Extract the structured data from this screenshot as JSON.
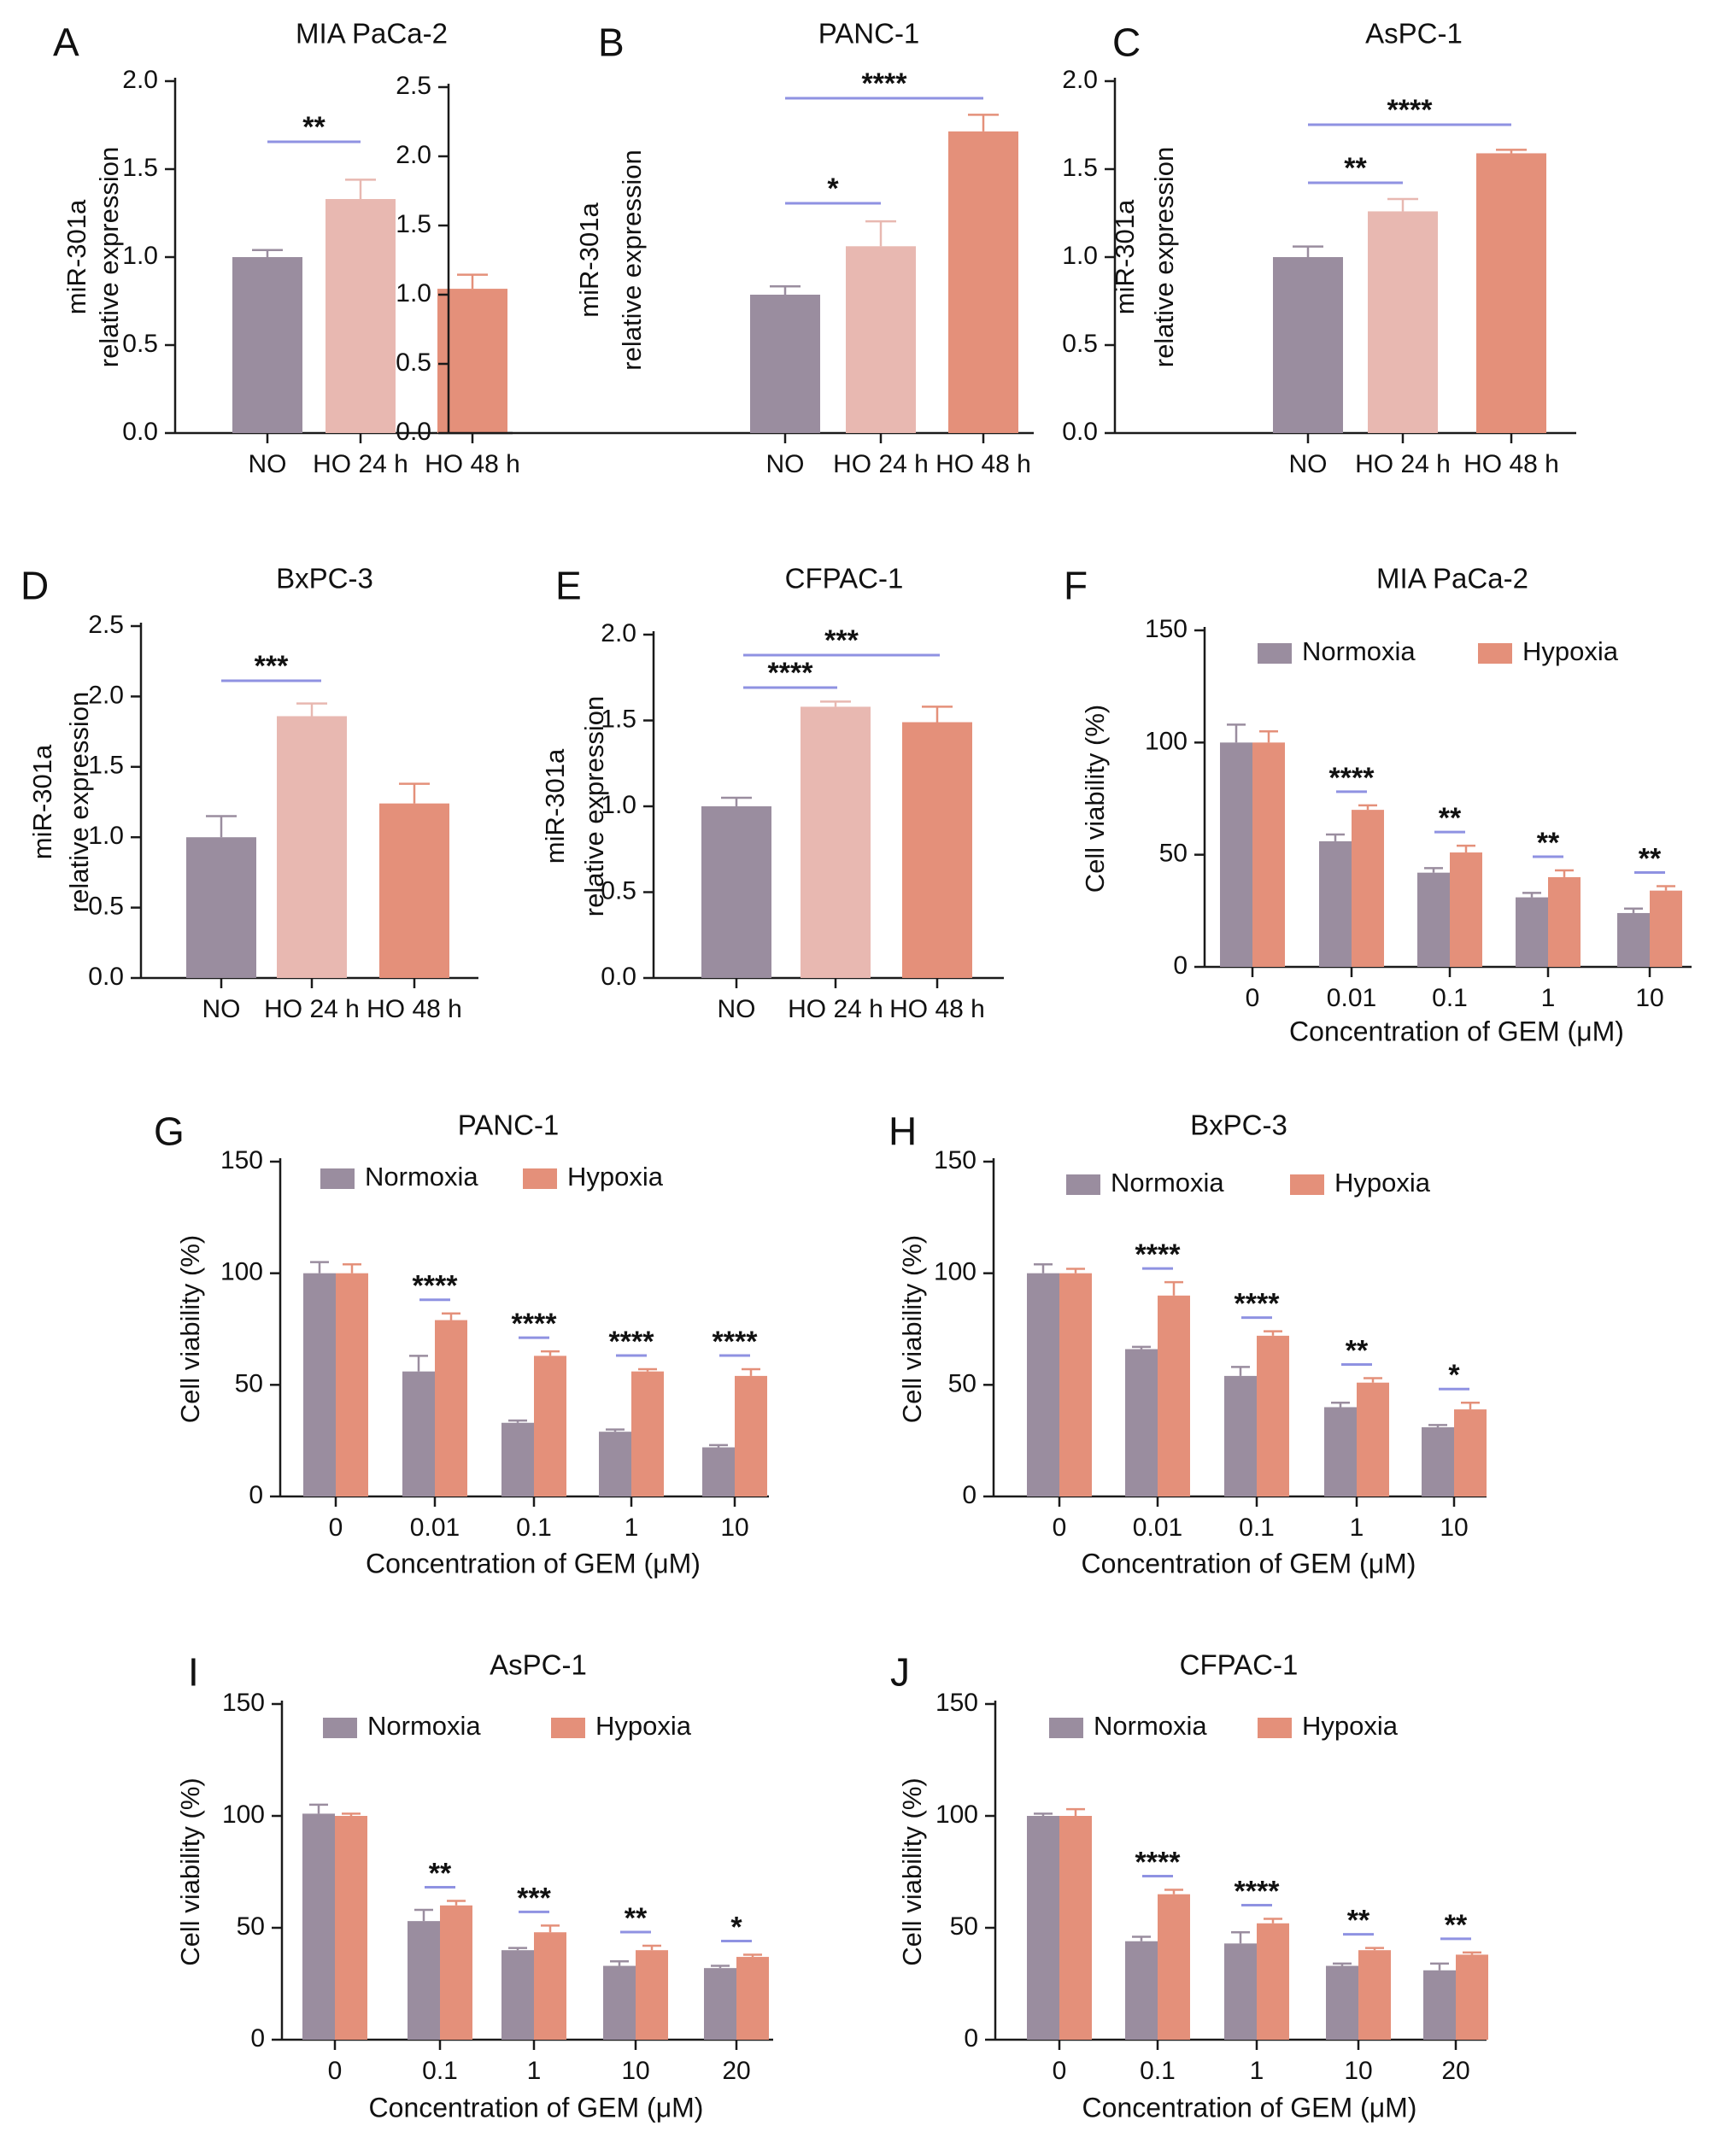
{
  "colors": {
    "normoxia": "#9a8d9f",
    "ho24": "#e8b8b1",
    "hypoxia": "#e4907a",
    "sig": "#8f92e2",
    "axis": "#1a1a1a"
  },
  "chart_data": [
    {
      "id": "A",
      "type": "bar",
      "title": "MIA PaCa-2",
      "ylabel": [
        "miR-301a",
        "relative expression"
      ],
      "xlabel": "",
      "categories": [
        "NO",
        "HO 24 h",
        "HO 48 h"
      ],
      "values": [
        1.0,
        1.33,
        0.82
      ],
      "errors": [
        0.04,
        0.11,
        0.08
      ],
      "ylim": [
        0,
        2.0
      ],
      "yticks": [
        "0.0",
        "0.5",
        "1.0",
        "1.5",
        "2.0"
      ],
      "significance": [
        {
          "from": 0,
          "to": 1,
          "label": "**"
        }
      ]
    },
    {
      "id": "B",
      "type": "bar",
      "title": "PANC-1",
      "ylabel": [
        "miR-301a",
        "relative expression"
      ],
      "xlabel": "",
      "categories": [
        "NO",
        "HO 24 h",
        "HO 48 h"
      ],
      "values": [
        1.0,
        1.35,
        2.18
      ],
      "errors": [
        0.06,
        0.18,
        0.12
      ],
      "ylim": [
        0,
        2.5
      ],
      "yticks": [
        "0.0",
        "0.5",
        "1.0",
        "1.5",
        "2.0",
        "2.5"
      ],
      "significance": [
        {
          "from": 0,
          "to": 1,
          "label": "*"
        },
        {
          "from": 0,
          "to": 2,
          "label": "****"
        }
      ]
    },
    {
      "id": "C",
      "type": "bar",
      "title": "AsPC-1",
      "ylabel": [
        "miR-301a",
        "relative expression"
      ],
      "xlabel": "",
      "categories": [
        "NO",
        "HO 24 h",
        "HO 48 h"
      ],
      "values": [
        1.0,
        1.26,
        1.59
      ],
      "errors": [
        0.06,
        0.07,
        0.02
      ],
      "ylim": [
        0,
        2.0
      ],
      "yticks": [
        "0.0",
        "0.5",
        "1.0",
        "1.5",
        "2.0"
      ],
      "significance": [
        {
          "from": 0,
          "to": 1,
          "label": "**"
        },
        {
          "from": 0,
          "to": 2,
          "label": "****"
        }
      ]
    },
    {
      "id": "D",
      "type": "bar",
      "title": "BxPC-3",
      "ylabel": [
        "miR-301a",
        "relative expression"
      ],
      "xlabel": "",
      "categories": [
        "NO",
        "HO 24 h",
        "HO 48 h"
      ],
      "values": [
        1.0,
        1.86,
        1.24
      ],
      "errors": [
        0.15,
        0.09,
        0.14
      ],
      "ylim": [
        0,
        2.5
      ],
      "yticks": [
        "0.0",
        "0.5",
        "1.0",
        "1.5",
        "2.0",
        "2.5"
      ],
      "significance": [
        {
          "from": 0,
          "to": 1,
          "label": "***"
        }
      ]
    },
    {
      "id": "E",
      "type": "bar",
      "title": "CFPAC-1",
      "ylabel": [
        "miR-301a",
        "relative expression"
      ],
      "xlabel": "",
      "categories": [
        "NO",
        "HO 24 h",
        "HO 48 h"
      ],
      "values": [
        1.0,
        1.58,
        1.49
      ],
      "errors": [
        0.05,
        0.03,
        0.09
      ],
      "ylim": [
        0,
        2.0
      ],
      "yticks": [
        "0.0",
        "0.5",
        "1.0",
        "1.5",
        "2.0"
      ],
      "significance": [
        {
          "from": 0,
          "to": 1,
          "label": "****"
        },
        {
          "from": 0,
          "to": 2,
          "label": "***"
        }
      ]
    },
    {
      "id": "F",
      "type": "grouped-bar",
      "title": "MIA PaCa-2",
      "ylabel": [
        "Cell viability (%)"
      ],
      "xlabel": "Concentration of GEM (μM)",
      "categories": [
        "0",
        "0.01",
        "0.1",
        "1",
        "10"
      ],
      "ylim": [
        0,
        150
      ],
      "yticks": [
        "0",
        "50",
        "100",
        "150"
      ],
      "series": [
        {
          "name": "Normoxia",
          "values": [
            100,
            56,
            42,
            31,
            24
          ],
          "errors": [
            8,
            3,
            2,
            2,
            2
          ]
        },
        {
          "name": "Hypoxia",
          "values": [
            100,
            70,
            51,
            40,
            34
          ],
          "errors": [
            5,
            2,
            3,
            3,
            2
          ]
        }
      ],
      "significance": [
        "",
        "****",
        "**",
        "**",
        "**"
      ]
    },
    {
      "id": "G",
      "type": "grouped-bar",
      "title": "PANC-1",
      "ylabel": [
        "Cell viability (%)"
      ],
      "xlabel": "Concentration of GEM (μM)",
      "categories": [
        "0",
        "0.01",
        "0.1",
        "1",
        "10"
      ],
      "ylim": [
        0,
        150
      ],
      "yticks": [
        "0",
        "50",
        "100",
        "150"
      ],
      "series": [
        {
          "name": "Normoxia",
          "values": [
            100,
            56,
            33,
            29,
            22
          ],
          "errors": [
            5,
            7,
            1,
            1,
            1
          ]
        },
        {
          "name": "Hypoxia",
          "values": [
            100,
            79,
            63,
            56,
            54
          ],
          "errors": [
            4,
            3,
            2,
            1,
            3
          ]
        }
      ],
      "significance": [
        "",
        "****",
        "****",
        "****",
        "****"
      ]
    },
    {
      "id": "H",
      "type": "grouped-bar",
      "title": "BxPC-3",
      "ylabel": [
        "Cell viability (%)"
      ],
      "xlabel": "Concentration of GEM (μM)",
      "categories": [
        "0",
        "0.01",
        "0.1",
        "1",
        "10"
      ],
      "ylim": [
        0,
        150
      ],
      "yticks": [
        "0",
        "50",
        "100",
        "150"
      ],
      "series": [
        {
          "name": "Normoxia",
          "values": [
            100,
            66,
            54,
            40,
            31
          ],
          "errors": [
            4,
            1,
            4,
            2,
            1
          ]
        },
        {
          "name": "Hypoxia",
          "values": [
            100,
            90,
            72,
            51,
            39
          ],
          "errors": [
            2,
            6,
            2,
            2,
            3
          ]
        }
      ],
      "significance": [
        "",
        "****",
        "****",
        "**",
        "*"
      ]
    },
    {
      "id": "I",
      "type": "grouped-bar",
      "title": "AsPC-1",
      "ylabel": [
        "Cell viability (%)"
      ],
      "xlabel": "Concentration of GEM (μM)",
      "categories": [
        "0",
        "0.1",
        "1",
        "10",
        "20"
      ],
      "ylim": [
        0,
        150
      ],
      "yticks": [
        "0",
        "50",
        "100",
        "150"
      ],
      "series": [
        {
          "name": "Normoxia",
          "values": [
            101,
            53,
            40,
            33,
            32
          ],
          "errors": [
            4,
            5,
            1,
            2,
            1
          ]
        },
        {
          "name": "Hypoxia",
          "values": [
            100,
            60,
            48,
            40,
            37
          ],
          "errors": [
            1,
            2,
            3,
            2,
            1
          ]
        }
      ],
      "significance": [
        "",
        "**",
        "***",
        "**",
        "*"
      ]
    },
    {
      "id": "J",
      "type": "grouped-bar",
      "title": "CFPAC-1",
      "ylabel": [
        "Cell viability (%)"
      ],
      "xlabel": "Concentration of GEM (μM)",
      "categories": [
        "0",
        "0.1",
        "1",
        "10",
        "20"
      ],
      "ylim": [
        0,
        150
      ],
      "yticks": [
        "0",
        "50",
        "100",
        "150"
      ],
      "series": [
        {
          "name": "Normoxia",
          "values": [
            100,
            44,
            43,
            33,
            31
          ],
          "errors": [
            1,
            2,
            5,
            1,
            3
          ]
        },
        {
          "name": "Hypoxia",
          "values": [
            100,
            65,
            52,
            40,
            38
          ],
          "errors": [
            3,
            2,
            2,
            1,
            1
          ]
        }
      ],
      "significance": [
        "",
        "****",
        "****",
        "**",
        "**"
      ]
    }
  ]
}
